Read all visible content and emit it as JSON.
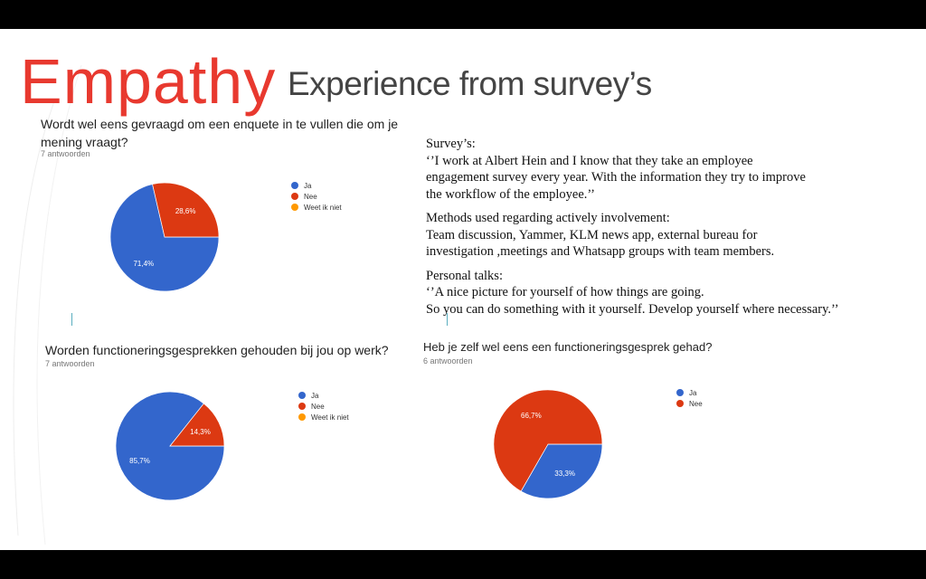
{
  "slide": {
    "title": "Empathy",
    "subtitle": "Experience from survey’s"
  },
  "notes": {
    "survey_heading": "Survey’s:",
    "survey_quote": [
      "‘’I work at Albert Hein and I know that they take an employee",
      "engagement survey every year. With the information they try to improve",
      "the workflow of the employee.’’"
    ],
    "methods_heading": "Methods used regarding actively involvement:",
    "methods_text": [
      "Team discussion, Yammer, KLM news app, external  bureau for",
      "investigation ,meetings and Whatsapp groups with team members."
    ],
    "talks_heading": "Personal talks:",
    "talks_quote": [
      "‘’A nice picture for yourself of how things are going.",
      " So you can do something with it yourself. Develop yourself where necessary.’’"
    ]
  },
  "chart_data": [
    {
      "type": "pie",
      "title": "Wordt wel eens gevraagd om een enquete in te vullen die om je mening vraagt?",
      "subtitle": "7 antwoorden",
      "categories": [
        "Ja",
        "Nee",
        "Weet ik niet"
      ],
      "values": [
        71.4,
        28.6,
        0
      ],
      "labels": [
        "71,4%",
        "28,6%",
        ""
      ],
      "colors": [
        "#3366cc",
        "#dc3912",
        "#ff9900"
      ],
      "legend": "right"
    },
    {
      "type": "pie",
      "title": "Worden functioneringsgesprekken gehouden bij jou op werk?",
      "subtitle": "7 antwoorden",
      "categories": [
        "Ja",
        "Nee",
        "Weet ik niet"
      ],
      "values": [
        85.7,
        14.3,
        0
      ],
      "labels": [
        "85,7%",
        "14,3%",
        ""
      ],
      "colors": [
        "#3366cc",
        "#dc3912",
        "#ff9900"
      ],
      "legend": "right"
    },
    {
      "type": "pie",
      "title": "Heb je zelf wel eens een functioneringsgesprek gehad?",
      "subtitle": "6 antwoorden",
      "categories": [
        "Ja",
        "Nee"
      ],
      "values": [
        33.3,
        66.7
      ],
      "labels": [
        "33,3%",
        "66,7%"
      ],
      "colors": [
        "#3366cc",
        "#dc3912"
      ],
      "legend": "right"
    }
  ]
}
